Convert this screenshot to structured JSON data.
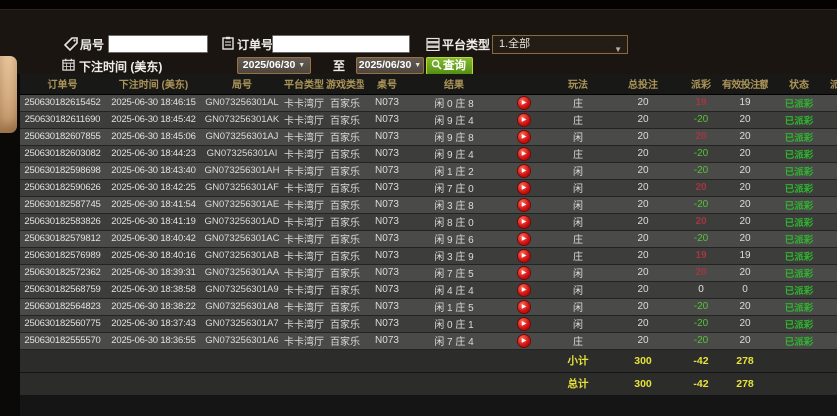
{
  "filters": {
    "round_label": "局号",
    "round_value": "",
    "order_label": "订单号",
    "order_value": "",
    "platform_label": "平台类型",
    "platform_value": "1.全部",
    "time_label": "下注时间 (美东)",
    "date_from": "2025/06/30",
    "to_label": "至",
    "date_to": "2025/06/30",
    "query_label": "查询"
  },
  "icons": {
    "dropdown_arrow": "▼",
    "play_glyph": "▶"
  },
  "colors": {
    "header_gold": "#ab9458",
    "query_green": "#6aa21e",
    "payout_win_red": "#a03742",
    "payout_loss_green": "#56c437",
    "status_paid_green": "#2fb52f",
    "summary_yellow": "#e6e23c"
  },
  "table": {
    "headers": [
      "订单号",
      "下注时间 (美东)",
      "局号",
      "平台类型",
      "游戏类型",
      "桌号",
      "结果",
      "",
      "玩法",
      "总投注",
      "派彩",
      "有效投注额",
      "状态",
      "派"
    ],
    "rows": [
      {
        "order": "250630182615452",
        "time": "2025-06-30 18:46:15",
        "round": "GN073256301AL",
        "platform": "卡卡湾厅",
        "game": "百家乐",
        "table": "N073",
        "result": "闲 0 庄 8",
        "bet": "庄",
        "total": "20",
        "payout": "19",
        "payout_class": "pos",
        "valid": "19",
        "status": "已派彩"
      },
      {
        "order": "250630182611690",
        "time": "2025-06-30 18:45:42",
        "round": "GN073256301AK",
        "platform": "卡卡湾厅",
        "game": "百家乐",
        "table": "N073",
        "result": "闲 9 庄 4",
        "bet": "庄",
        "total": "20",
        "payout": "-20",
        "payout_class": "neg",
        "valid": "20",
        "status": "已派彩"
      },
      {
        "order": "250630182607855",
        "time": "2025-06-30 18:45:06",
        "round": "GN073256301AJ",
        "platform": "卡卡湾厅",
        "game": "百家乐",
        "table": "N073",
        "result": "闲 9 庄 8",
        "bet": "闲",
        "total": "20",
        "payout": "20",
        "payout_class": "pos",
        "valid": "20",
        "status": "已派彩"
      },
      {
        "order": "250630182603082",
        "time": "2025-06-30 18:44:23",
        "round": "GN073256301AI",
        "platform": "卡卡湾厅",
        "game": "百家乐",
        "table": "N073",
        "result": "闲 9 庄 4",
        "bet": "庄",
        "total": "20",
        "payout": "-20",
        "payout_class": "neg",
        "valid": "20",
        "status": "已派彩"
      },
      {
        "order": "250630182598698",
        "time": "2025-06-30 18:43:40",
        "round": "GN073256301AH",
        "platform": "卡卡湾厅",
        "game": "百家乐",
        "table": "N073",
        "result": "闲 1 庄 2",
        "bet": "闲",
        "total": "20",
        "payout": "-20",
        "payout_class": "neg",
        "valid": "20",
        "status": "已派彩"
      },
      {
        "order": "250630182590626",
        "time": "2025-06-30 18:42:25",
        "round": "GN073256301AF",
        "platform": "卡卡湾厅",
        "game": "百家乐",
        "table": "N073",
        "result": "闲 7 庄 0",
        "bet": "闲",
        "total": "20",
        "payout": "20",
        "payout_class": "pos",
        "valid": "20",
        "status": "已派彩"
      },
      {
        "order": "250630182587745",
        "time": "2025-06-30 18:41:54",
        "round": "GN073256301AE",
        "platform": "卡卡湾厅",
        "game": "百家乐",
        "table": "N073",
        "result": "闲 3 庄 8",
        "bet": "闲",
        "total": "20",
        "payout": "-20",
        "payout_class": "neg",
        "valid": "20",
        "status": "已派彩"
      },
      {
        "order": "250630182583826",
        "time": "2025-06-30 18:41:19",
        "round": "GN073256301AD",
        "platform": "卡卡湾厅",
        "game": "百家乐",
        "table": "N073",
        "result": "闲 8 庄 0",
        "bet": "闲",
        "total": "20",
        "payout": "20",
        "payout_class": "pos",
        "valid": "20",
        "status": "已派彩"
      },
      {
        "order": "250630182579812",
        "time": "2025-06-30 18:40:42",
        "round": "GN073256301AC",
        "platform": "卡卡湾厅",
        "game": "百家乐",
        "table": "N073",
        "result": "闲 9 庄 6",
        "bet": "庄",
        "total": "20",
        "payout": "-20",
        "payout_class": "neg",
        "valid": "20",
        "status": "已派彩"
      },
      {
        "order": "250630182576989",
        "time": "2025-06-30 18:40:16",
        "round": "GN073256301AB",
        "platform": "卡卡湾厅",
        "game": "百家乐",
        "table": "N073",
        "result": "闲 3 庄 9",
        "bet": "庄",
        "total": "20",
        "payout": "19",
        "payout_class": "pos",
        "valid": "19",
        "status": "已派彩"
      },
      {
        "order": "250630182572362",
        "time": "2025-06-30 18:39:31",
        "round": "GN073256301AA",
        "platform": "卡卡湾厅",
        "game": "百家乐",
        "table": "N073",
        "result": "闲 7 庄 5",
        "bet": "闲",
        "total": "20",
        "payout": "20",
        "payout_class": "pos",
        "valid": "20",
        "status": "已派彩"
      },
      {
        "order": "250630182568759",
        "time": "2025-06-30 18:38:58",
        "round": "GN073256301A9",
        "platform": "卡卡湾厅",
        "game": "百家乐",
        "table": "N073",
        "result": "闲 4 庄 4",
        "bet": "闲",
        "total": "20",
        "payout": "0",
        "payout_class": "zero",
        "valid": "0",
        "status": "已派彩"
      },
      {
        "order": "250630182564823",
        "time": "2025-06-30 18:38:22",
        "round": "GN073256301A8",
        "platform": "卡卡湾厅",
        "game": "百家乐",
        "table": "N073",
        "result": "闲 1 庄 5",
        "bet": "闲",
        "total": "20",
        "payout": "-20",
        "payout_class": "neg",
        "valid": "20",
        "status": "已派彩"
      },
      {
        "order": "250630182560775",
        "time": "2025-06-30 18:37:43",
        "round": "GN073256301A7",
        "platform": "卡卡湾厅",
        "game": "百家乐",
        "table": "N073",
        "result": "闲 0 庄 1",
        "bet": "闲",
        "total": "20",
        "payout": "-20",
        "payout_class": "neg",
        "valid": "20",
        "status": "已派彩"
      },
      {
        "order": "250630182555570",
        "time": "2025-06-30 18:36:55",
        "round": "GN073256301A6",
        "platform": "卡卡湾厅",
        "game": "百家乐",
        "table": "N073",
        "result": "闲 7 庄 4",
        "bet": "庄",
        "total": "20",
        "payout": "-20",
        "payout_class": "neg",
        "valid": "20",
        "status": "已派彩"
      }
    ],
    "subtotal": {
      "label": "小计",
      "total": "300",
      "payout": "-42",
      "valid": "278"
    },
    "total": {
      "label": "总计",
      "total": "300",
      "payout": "-42",
      "valid": "278"
    }
  }
}
